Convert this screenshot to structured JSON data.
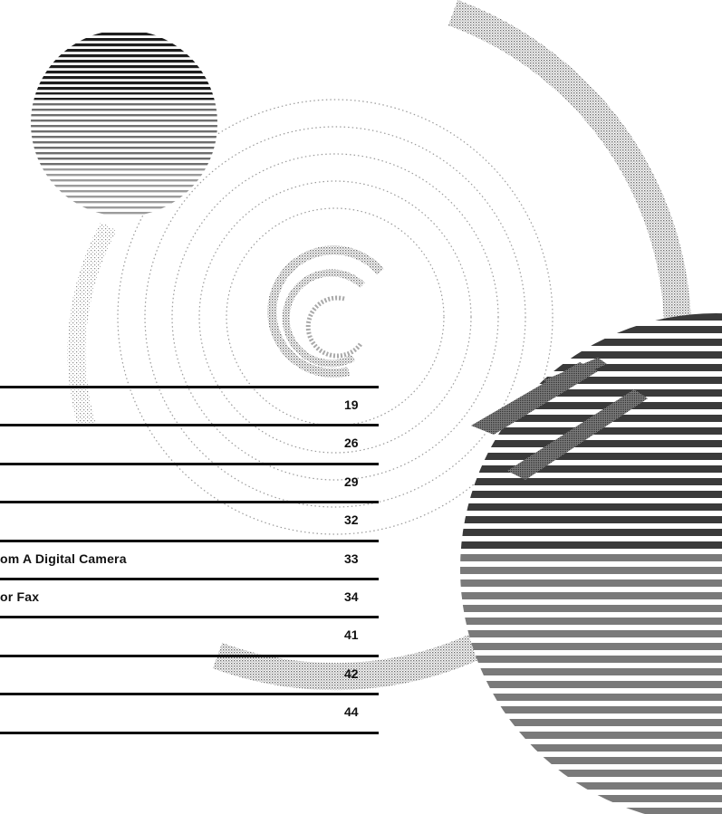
{
  "colors": {
    "rule": "#111111",
    "halftone_dark": "#3a3a3a",
    "halftone_mid": "#8a8a8a",
    "halftone_light": "#c4c4c4"
  },
  "toc": {
    "entries": [
      {
        "title": "",
        "page": "19"
      },
      {
        "title": "",
        "page": "26"
      },
      {
        "title": "",
        "page": "29"
      },
      {
        "title": "",
        "page": "32"
      },
      {
        "title": "om A Digital Camera",
        "page": "33"
      },
      {
        "title": "or Fax",
        "page": "34"
      },
      {
        "title": "",
        "page": "41"
      },
      {
        "title": "",
        "page": "42"
      },
      {
        "title": "",
        "page": "44"
      }
    ]
  }
}
